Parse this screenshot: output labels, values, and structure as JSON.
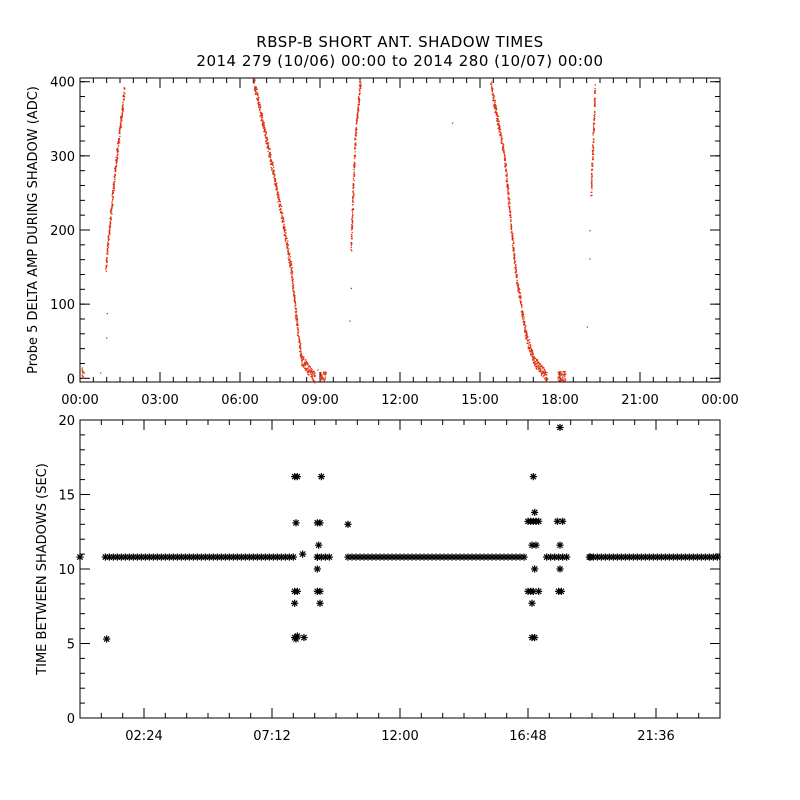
{
  "header": {
    "title": "RBSP-B SHORT ANT. SHADOW TIMES",
    "subtitle": "2014 279 (10/06) 00:00 to 2014 280 (10/07) 00:00"
  },
  "colors": {
    "top_points": "#e03010",
    "bottom_points": "#000000",
    "axes": "#000000"
  },
  "chart_data": [
    {
      "type": "scatter",
      "ylabel": "Probe 5 DELTA AMP DURING SHADOW (ADC)",
      "xlabel": "",
      "x_unit": "hours of day",
      "xlim": [
        0,
        24
      ],
      "ylim": [
        -5,
        405
      ],
      "xticks": [
        0,
        3,
        6,
        9,
        12,
        15,
        18,
        21,
        24
      ],
      "xtick_labels": [
        "00:00",
        "03:00",
        "06:00",
        "09:00",
        "12:00",
        "15:00",
        "18:00",
        "21:00",
        "00:00"
      ],
      "yticks": [
        0,
        100,
        200,
        300,
        400
      ],
      "ytick_labels": [
        "0",
        "100",
        "200",
        "300",
        "400"
      ],
      "marker": "dot",
      "segments": [
        {
          "x0": 0.05,
          "x1": 0.12,
          "y0": 8,
          "y1": 2
        },
        {
          "x0": 0.95,
          "x1": 1.3,
          "y0": 150,
          "y1": 280
        },
        {
          "x0": 1.3,
          "x1": 1.65,
          "y0": 280,
          "y1": 390
        },
        {
          "x0": 6.5,
          "x1": 7.0,
          "y0": 400,
          "y1": 320
        },
        {
          "x0": 7.0,
          "x1": 7.5,
          "y0": 320,
          "y1": 230
        },
        {
          "x0": 7.5,
          "x1": 7.9,
          "y0": 230,
          "y1": 150
        },
        {
          "x0": 7.9,
          "x1": 8.1,
          "y0": 150,
          "y1": 80
        },
        {
          "x0": 8.1,
          "x1": 8.3,
          "y0": 80,
          "y1": 25
        },
        {
          "x0": 8.3,
          "x1": 8.8,
          "y0": 25,
          "y1": 1
        },
        {
          "x0": 9.0,
          "x1": 9.2,
          "y0": 3,
          "y1": 3
        },
        {
          "x0": 10.15,
          "x1": 10.3,
          "y0": 175,
          "y1": 320
        },
        {
          "x0": 10.3,
          "x1": 10.5,
          "y0": 320,
          "y1": 400
        },
        {
          "x0": 15.4,
          "x1": 15.9,
          "y0": 395,
          "y1": 300
        },
        {
          "x0": 15.9,
          "x1": 16.3,
          "y0": 300,
          "y1": 150
        },
        {
          "x0": 16.3,
          "x1": 16.7,
          "y0": 150,
          "y1": 60
        },
        {
          "x0": 16.7,
          "x1": 17.0,
          "y0": 60,
          "y1": 25
        },
        {
          "x0": 17.0,
          "x1": 17.5,
          "y0": 25,
          "y1": 2
        },
        {
          "x0": 17.9,
          "x1": 18.2,
          "y0": 3,
          "y1": 3
        },
        {
          "x0": 19.15,
          "x1": 19.3,
          "y0": 250,
          "y1": 390
        }
      ],
      "isolated_points": [
        [
          0.75,
          8
        ],
        [
          1.0,
          88
        ],
        [
          0.98,
          55
        ],
        [
          8.9,
          12
        ],
        [
          10.15,
          122
        ],
        [
          10.1,
          78
        ],
        [
          13.95,
          345
        ],
        [
          19.0,
          70
        ],
        [
          19.1,
          162
        ],
        [
          19.1,
          200
        ]
      ]
    },
    {
      "type": "scatter",
      "ylabel": "TIME BETWEEN SHADOWS (SEC)",
      "xlabel": "",
      "x_unit": "hours of day",
      "xlim": [
        0,
        24
      ],
      "ylim": [
        0,
        20
      ],
      "xticks": [
        2.4,
        7.2,
        12,
        16.8,
        21.6
      ],
      "xtick_labels": [
        "02:24",
        "07:12",
        "12:00",
        "16:48",
        "21:36"
      ],
      "yticks": [
        0,
        5,
        10,
        15,
        20
      ],
      "ytick_labels": [
        "0",
        "5",
        "10",
        "15",
        "20"
      ],
      "marker": "asterisk",
      "bands": [
        {
          "x0": 0.0,
          "x1": 0.1,
          "y": 10.8
        },
        {
          "x0": 0.95,
          "x1": 8.0,
          "y": 10.8
        },
        {
          "x0": 8.9,
          "x1": 9.45,
          "y": 10.8
        },
        {
          "x0": 10.05,
          "x1": 16.7,
          "y": 10.8
        },
        {
          "x0": 17.5,
          "x1": 18.25,
          "y": 10.8
        },
        {
          "x0": 19.1,
          "x1": 24.0,
          "y": 10.8
        }
      ],
      "points": [
        [
          1.0,
          5.3
        ],
        [
          8.05,
          16.2
        ],
        [
          8.15,
          16.2
        ],
        [
          8.1,
          13.1
        ],
        [
          8.05,
          8.5
        ],
        [
          8.15,
          8.5
        ],
        [
          8.05,
          7.7
        ],
        [
          8.05,
          5.4
        ],
        [
          8.15,
          5.5
        ],
        [
          8.1,
          5.3
        ],
        [
          8.4,
          5.4
        ],
        [
          8.35,
          11.0
        ],
        [
          8.9,
          13.1
        ],
        [
          9.0,
          13.1
        ],
        [
          9.05,
          16.2
        ],
        [
          8.95,
          11.6
        ],
        [
          8.9,
          10.8
        ],
        [
          8.9,
          10.0
        ],
        [
          8.9,
          8.5
        ],
        [
          9.0,
          8.5
        ],
        [
          9.0,
          7.7
        ],
        [
          10.05,
          13.0
        ],
        [
          16.8,
          13.2
        ],
        [
          16.9,
          13.2
        ],
        [
          17.0,
          13.2
        ],
        [
          17.1,
          13.2
        ],
        [
          17.2,
          13.2
        ],
        [
          17.0,
          16.2
        ],
        [
          17.05,
          13.8
        ],
        [
          16.95,
          11.6
        ],
        [
          17.1,
          11.6
        ],
        [
          16.8,
          8.5
        ],
        [
          16.9,
          8.5
        ],
        [
          17.0,
          8.5
        ],
        [
          17.2,
          8.5
        ],
        [
          17.05,
          10.0
        ],
        [
          16.95,
          7.7
        ],
        [
          16.95,
          5.4
        ],
        [
          17.05,
          5.4
        ],
        [
          18.0,
          19.5
        ],
        [
          17.9,
          13.2
        ],
        [
          18.1,
          13.2
        ],
        [
          18.0,
          11.6
        ],
        [
          18.0,
          10.0
        ],
        [
          17.95,
          8.5
        ],
        [
          18.05,
          8.5
        ],
        [
          19.15,
          10.8
        ]
      ]
    }
  ]
}
